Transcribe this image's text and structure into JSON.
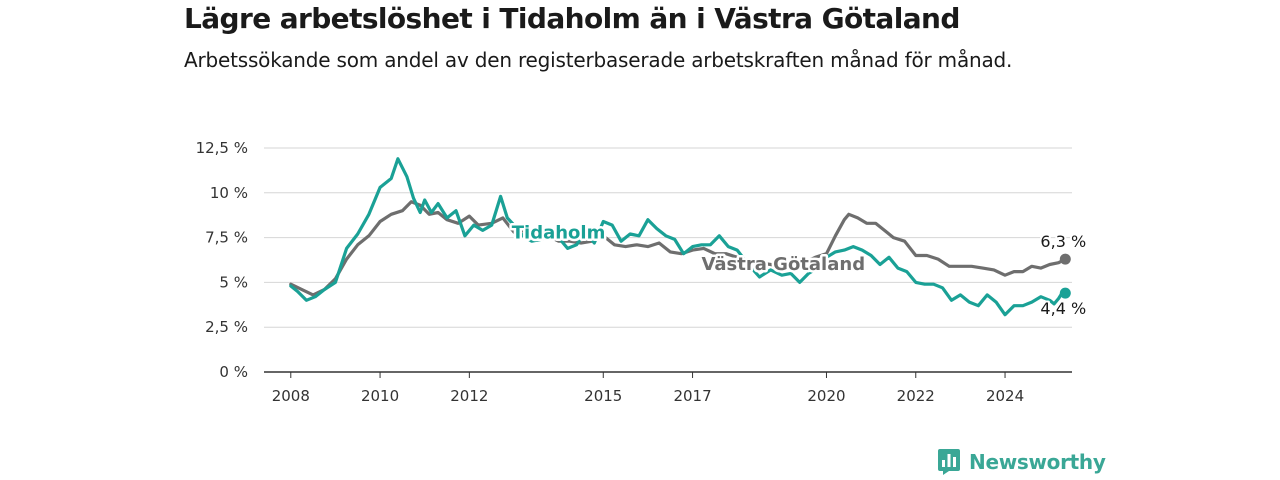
{
  "title": "Lägre arbetslöshet i Tidaholm än i Västra Götaland",
  "subtitle": "Arbetssökande som andel av den registerbaserade arbetskraften månad för månad.",
  "brand": {
    "name": "Newsworthy",
    "color": "#3aa796"
  },
  "chart_data": {
    "type": "line",
    "xlim": [
      2007.4,
      2025.5
    ],
    "ylim": [
      0,
      12.5
    ],
    "y_ticks": [
      {
        "value": 0,
        "label": "0 %"
      },
      {
        "value": 2.5,
        "label": "2,5 %"
      },
      {
        "value": 5,
        "label": "5 %"
      },
      {
        "value": 7.5,
        "label": "7,5 %"
      },
      {
        "value": 10,
        "label": "10 %"
      },
      {
        "value": 12.5,
        "label": "12,5 %"
      }
    ],
    "x_ticks": [
      {
        "value": 2008,
        "label": "2008"
      },
      {
        "value": 2010,
        "label": "2010"
      },
      {
        "value": 2012,
        "label": "2012"
      },
      {
        "value": 2015,
        "label": "2015"
      },
      {
        "value": 2017,
        "label": "2017"
      },
      {
        "value": 2020,
        "label": "2020"
      },
      {
        "value": 2022,
        "label": "2022"
      },
      {
        "value": 2024,
        "label": "2024"
      }
    ],
    "grid": true,
    "series": [
      {
        "name": "Västra Götaland",
        "color": "#6e6e6e",
        "end_label": "6,3 %",
        "points": [
          [
            2008.0,
            4.9
          ],
          [
            2008.25,
            4.6
          ],
          [
            2008.5,
            4.3
          ],
          [
            2008.75,
            4.6
          ],
          [
            2009.0,
            5.2
          ],
          [
            2009.25,
            6.3
          ],
          [
            2009.5,
            7.1
          ],
          [
            2009.75,
            7.6
          ],
          [
            2010.0,
            8.4
          ],
          [
            2010.25,
            8.8
          ],
          [
            2010.5,
            9.0
          ],
          [
            2010.7,
            9.5
          ],
          [
            2010.9,
            9.3
          ],
          [
            2011.1,
            8.8
          ],
          [
            2011.3,
            8.9
          ],
          [
            2011.5,
            8.5
          ],
          [
            2011.75,
            8.3
          ],
          [
            2012.0,
            8.7
          ],
          [
            2012.2,
            8.2
          ],
          [
            2012.5,
            8.3
          ],
          [
            2012.75,
            8.6
          ],
          [
            2013.0,
            7.8
          ],
          [
            2013.25,
            7.9
          ],
          [
            2013.5,
            7.5
          ],
          [
            2013.75,
            7.6
          ],
          [
            2014.0,
            7.3
          ],
          [
            2014.25,
            7.3
          ],
          [
            2014.5,
            7.2
          ],
          [
            2014.75,
            7.3
          ],
          [
            2015.0,
            7.6
          ],
          [
            2015.25,
            7.1
          ],
          [
            2015.5,
            7.0
          ],
          [
            2015.75,
            7.1
          ],
          [
            2016.0,
            7.0
          ],
          [
            2016.25,
            7.2
          ],
          [
            2016.5,
            6.7
          ],
          [
            2016.75,
            6.6
          ],
          [
            2017.0,
            6.8
          ],
          [
            2017.25,
            6.9
          ],
          [
            2017.5,
            6.6
          ],
          [
            2017.75,
            6.6
          ],
          [
            2018.0,
            6.4
          ],
          [
            2018.25,
            6.2
          ],
          [
            2018.5,
            6.1
          ],
          [
            2018.75,
            6.0
          ],
          [
            2019.0,
            5.9
          ],
          [
            2019.25,
            6.0
          ],
          [
            2019.5,
            6.1
          ],
          [
            2019.75,
            6.4
          ],
          [
            2020.0,
            6.6
          ],
          [
            2020.2,
            7.6
          ],
          [
            2020.4,
            8.5
          ],
          [
            2020.5,
            8.8
          ],
          [
            2020.7,
            8.6
          ],
          [
            2020.9,
            8.3
          ],
          [
            2021.1,
            8.3
          ],
          [
            2021.3,
            7.9
          ],
          [
            2021.5,
            7.5
          ],
          [
            2021.75,
            7.3
          ],
          [
            2022.0,
            6.5
          ],
          [
            2022.25,
            6.5
          ],
          [
            2022.5,
            6.3
          ],
          [
            2022.75,
            5.9
          ],
          [
            2023.0,
            5.9
          ],
          [
            2023.25,
            5.9
          ],
          [
            2023.5,
            5.8
          ],
          [
            2023.75,
            5.7
          ],
          [
            2024.0,
            5.4
          ],
          [
            2024.2,
            5.6
          ],
          [
            2024.4,
            5.6
          ],
          [
            2024.6,
            5.9
          ],
          [
            2024.8,
            5.8
          ],
          [
            2025.0,
            6.0
          ],
          [
            2025.2,
            6.1
          ],
          [
            2025.35,
            6.3
          ]
        ]
      },
      {
        "name": "Tidaholm",
        "color": "#1aa196",
        "end_label": "4,4 %",
        "points": [
          [
            2008.0,
            4.8
          ],
          [
            2008.15,
            4.5
          ],
          [
            2008.35,
            4.0
          ],
          [
            2008.55,
            4.2
          ],
          [
            2008.75,
            4.6
          ],
          [
            2009.0,
            5.0
          ],
          [
            2009.25,
            6.9
          ],
          [
            2009.5,
            7.7
          ],
          [
            2009.75,
            8.8
          ],
          [
            2010.0,
            10.3
          ],
          [
            2010.25,
            10.8
          ],
          [
            2010.4,
            11.9
          ],
          [
            2010.6,
            10.9
          ],
          [
            2010.75,
            9.7
          ],
          [
            2010.9,
            8.9
          ],
          [
            2011.0,
            9.6
          ],
          [
            2011.15,
            8.9
          ],
          [
            2011.3,
            9.4
          ],
          [
            2011.5,
            8.6
          ],
          [
            2011.7,
            9.0
          ],
          [
            2011.9,
            7.6
          ],
          [
            2012.1,
            8.2
          ],
          [
            2012.3,
            7.9
          ],
          [
            2012.5,
            8.2
          ],
          [
            2012.7,
            9.8
          ],
          [
            2012.85,
            8.6
          ],
          [
            2013.0,
            8.2
          ],
          [
            2013.2,
            7.6
          ],
          [
            2013.4,
            7.3
          ],
          [
            2013.6,
            7.4
          ],
          [
            2013.8,
            7.6
          ],
          [
            2014.0,
            7.5
          ],
          [
            2014.2,
            6.9
          ],
          [
            2014.4,
            7.1
          ],
          [
            2014.6,
            7.8
          ],
          [
            2014.8,
            7.2
          ],
          [
            2015.0,
            8.4
          ],
          [
            2015.2,
            8.2
          ],
          [
            2015.4,
            7.3
          ],
          [
            2015.6,
            7.7
          ],
          [
            2015.8,
            7.6
          ],
          [
            2016.0,
            8.5
          ],
          [
            2016.2,
            8.0
          ],
          [
            2016.4,
            7.6
          ],
          [
            2016.6,
            7.4
          ],
          [
            2016.8,
            6.6
          ],
          [
            2017.0,
            7.0
          ],
          [
            2017.2,
            7.1
          ],
          [
            2017.4,
            7.1
          ],
          [
            2017.6,
            7.6
          ],
          [
            2017.8,
            7.0
          ],
          [
            2018.0,
            6.8
          ],
          [
            2018.25,
            6.0
          ],
          [
            2018.5,
            5.3
          ],
          [
            2018.75,
            5.7
          ],
          [
            2019.0,
            5.4
          ],
          [
            2019.2,
            5.5
          ],
          [
            2019.4,
            5.0
          ],
          [
            2019.6,
            5.5
          ],
          [
            2019.8,
            5.8
          ],
          [
            2020.0,
            6.4
          ],
          [
            2020.2,
            6.7
          ],
          [
            2020.4,
            6.8
          ],
          [
            2020.6,
            7.0
          ],
          [
            2020.8,
            6.8
          ],
          [
            2021.0,
            6.5
          ],
          [
            2021.2,
            6.0
          ],
          [
            2021.4,
            6.4
          ],
          [
            2021.6,
            5.8
          ],
          [
            2021.8,
            5.6
          ],
          [
            2022.0,
            5.0
          ],
          [
            2022.2,
            4.9
          ],
          [
            2022.4,
            4.9
          ],
          [
            2022.6,
            4.7
          ],
          [
            2022.8,
            4.0
          ],
          [
            2023.0,
            4.3
          ],
          [
            2023.2,
            3.9
          ],
          [
            2023.4,
            3.7
          ],
          [
            2023.6,
            4.3
          ],
          [
            2023.8,
            3.9
          ],
          [
            2024.0,
            3.2
          ],
          [
            2024.2,
            3.7
          ],
          [
            2024.4,
            3.7
          ],
          [
            2024.6,
            3.9
          ],
          [
            2024.8,
            4.2
          ],
          [
            2025.0,
            4.0
          ],
          [
            2025.1,
            3.8
          ],
          [
            2025.2,
            4.1
          ],
          [
            2025.3,
            4.5
          ],
          [
            2025.35,
            4.4
          ]
        ]
      }
    ]
  }
}
